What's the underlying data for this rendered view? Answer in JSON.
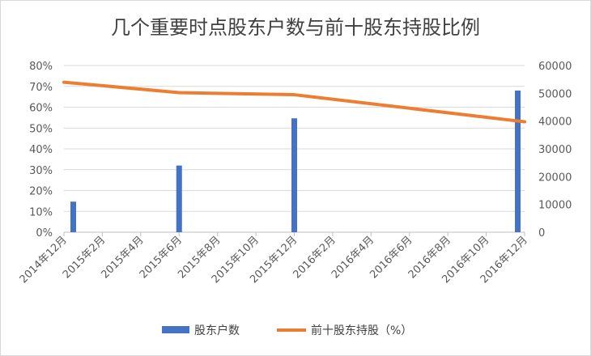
{
  "chart_data": {
    "type": "bar+line",
    "title": "几个重要时点股东户数与前十股东持股比例",
    "categories": [
      "2014年12月",
      "2015年2月",
      "2015年4月",
      "2015年6月",
      "2015年8月",
      "2015年10月",
      "2015年12月",
      "2016年2月",
      "2016年4月",
      "2016年6月",
      "2016年8月",
      "2016年10月",
      "2016年12月"
    ],
    "series": [
      {
        "name": "股东户数",
        "kind": "bar",
        "axis": "right",
        "color": "#4472C4",
        "values": [
          11000,
          null,
          null,
          24000,
          null,
          null,
          41000,
          null,
          null,
          null,
          null,
          null,
          51000
        ]
      },
      {
        "name": "前十股东持股（%）",
        "kind": "line",
        "axis": "left",
        "color": "#ED7D31",
        "points": [
          {
            "x": "2014年12月",
            "y": 72
          },
          {
            "x": "2015年6月",
            "y": 67
          },
          {
            "x": "2015年12月",
            "y": 66
          },
          {
            "x": "2016年12月",
            "y": 53
          }
        ]
      }
    ],
    "y_left": {
      "ylim": [
        0,
        80
      ],
      "ticks": [
        "0%",
        "10%",
        "20%",
        "30%",
        "40%",
        "50%",
        "60%",
        "70%",
        "80%"
      ]
    },
    "y_right": {
      "ylim": [
        0,
        60000
      ],
      "ticks": [
        "0",
        "10000",
        "20000",
        "30000",
        "40000",
        "50000",
        "60000"
      ]
    },
    "grid": true,
    "legend_position": "bottom"
  }
}
